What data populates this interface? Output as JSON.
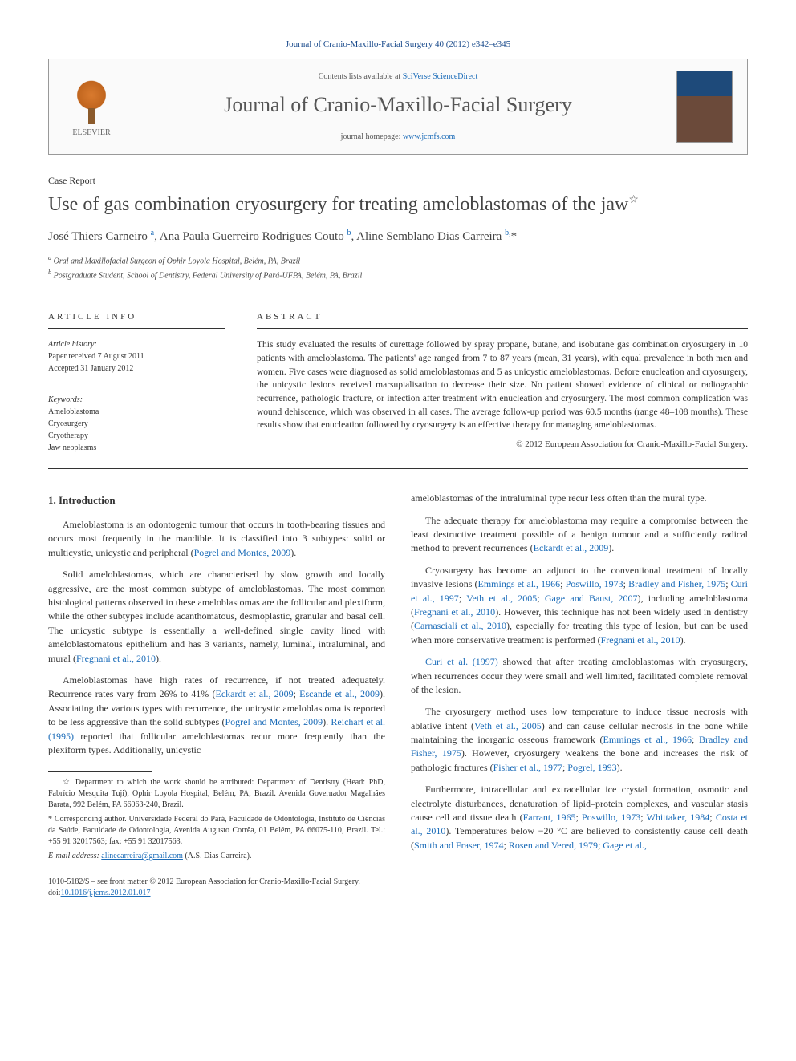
{
  "journal_ref": "Journal of Cranio-Maxillo-Facial Surgery 40 (2012) e342–e345",
  "header": {
    "contents_text": "Contents lists available at ",
    "contents_link": "SciVerse ScienceDirect",
    "journal_name": "Journal of Cranio-Maxillo-Facial Surgery",
    "homepage_label": "journal homepage: ",
    "homepage_url": "www.jcmfs.com",
    "elsevier_label": "ELSEVIER"
  },
  "article_type": "Case Report",
  "title": "Use of gas combination cryosurgery for treating ameloblastomas of the jaw",
  "title_star": "☆",
  "authors_html": "José Thiers Carneiro <sup>a</sup>, Ana Paula Guerreiro Rodrigues Couto <sup>b</sup>, Aline Semblano Dias Carreira <sup>b,</sup><span class='star'>*</span>",
  "affiliations": [
    "a Oral and Maxillofacial Surgeon of Ophir Loyola Hospital, Belém, PA, Brazil",
    "b Postgraduate Student, School of Dentistry, Federal University of Pará-UFPA, Belém, PA, Brazil"
  ],
  "article_info_label": "ARTICLE INFO",
  "abstract_label": "ABSTRACT",
  "history": {
    "label": "Article history:",
    "received": "Paper received 7 August 2011",
    "accepted": "Accepted 31 January 2012"
  },
  "keywords": {
    "label": "Keywords:",
    "items": [
      "Ameloblastoma",
      "Cryosurgery",
      "Cryotherapy",
      "Jaw neoplasms"
    ]
  },
  "abstract": "This study evaluated the results of curettage followed by spray propane, butane, and isobutane gas combination cryosurgery in 10 patients with ameloblastoma. The patients' age ranged from 7 to 87 years (mean, 31 years), with equal prevalence in both men and women. Five cases were diagnosed as solid ameloblastomas and 5 as unicystic ameloblastomas. Before enucleation and cryosurgery, the unicystic lesions received marsupialisation to decrease their size. No patient showed evidence of clinical or radiographic recurrence, pathologic fracture, or infection after treatment with enucleation and cryosurgery. The most common complication was wound dehiscence, which was observed in all cases. The average follow-up period was 60.5 months (range 48–108 months). These results show that enucleation followed by cryosurgery is an effective therapy for managing ameloblastomas.",
  "copyright": "© 2012 European Association for Cranio-Maxillo-Facial Surgery.",
  "section_heading": "1. Introduction",
  "body_paragraphs": [
    "Ameloblastoma is an odontogenic tumour that occurs in tooth-bearing tissues and occurs most frequently in the mandible. It is classified into 3 subtypes: solid or multicystic, unicystic and peripheral (<span class='cite'>Pogrel and Montes, 2009</span>).",
    "Solid ameloblastomas, which are characterised by slow growth and locally aggressive, are the most common subtype of ameloblastomas. The most common histological patterns observed in these ameloblastomas are the follicular and plexiform, while the other subtypes include acanthomatous, desmoplastic, granular and basal cell. The unicystic subtype is essentially a well-defined single cavity lined with ameloblastomatous epithelium and has 3 variants, namely, luminal, intraluminal, and mural (<span class='cite'>Fregnani et al., 2010</span>).",
    "Ameloblastomas have high rates of recurrence, if not treated adequately. Recurrence rates vary from 26% to 41% (<span class='cite'>Eckardt et al., 2009</span>; <span class='cite'>Escande et al., 2009</span>). Associating the various types with recurrence, the unicystic ameloblastoma is reported to be less aggressive than the solid subtypes (<span class='cite'>Pogrel and Montes, 2009</span>). <span class='cite'>Reichart et al. (1995)</span> reported that follicular ameloblastomas recur more frequently than the plexiform types. Additionally, unicystic",
    "ameloblastomas of the intraluminal type recur less often than the mural type.",
    "The adequate therapy for ameloblastoma may require a compromise between the least destructive treatment possible of a benign tumour and a sufficiently radical method to prevent recurrences (<span class='cite'>Eckardt et al., 2009</span>).",
    "Cryosurgery has become an adjunct to the conventional treatment of locally invasive lesions (<span class='cite'>Emmings et al., 1966</span>; <span class='cite'>Poswillo, 1973</span>; <span class='cite'>Bradley and Fisher, 1975</span>; <span class='cite'>Curi et al., 1997</span>; <span class='cite'>Veth et al., 2005</span>; <span class='cite'>Gage and Baust, 2007</span>), including ameloblastoma (<span class='cite'>Fregnani et al., 2010</span>). However, this technique has not been widely used in dentistry (<span class='cite'>Carnasciali et al., 2010</span>), especially for treating this type of lesion, but can be used when more conservative treatment is performed (<span class='cite'>Fregnani et al., 2010</span>).",
    "<span class='cite'>Curi et al. (1997)</span> showed that after treating ameloblastomas with cryosurgery, when recurrences occur they were small and well limited, facilitated complete removal of the lesion.",
    "The cryosurgery method uses low temperature to induce tissue necrosis with ablative intent (<span class='cite'>Veth et al., 2005</span>) and can cause cellular necrosis in the bone while maintaining the inorganic osseous framework (<span class='cite'>Emmings et al., 1966</span>; <span class='cite'>Bradley and Fisher, 1975</span>). However, cryosurgery weakens the bone and increases the risk of pathologic fractures (<span class='cite'>Fisher et al., 1977</span>; <span class='cite'>Pogrel, 1993</span>).",
    "Furthermore, intracellular and extracellular ice crystal formation, osmotic and electrolyte disturbances, denaturation of lipid–protein complexes, and vascular stasis cause cell and tissue death (<span class='cite'>Farrant, 1965</span>; <span class='cite'>Poswillo, 1973</span>; <span class='cite'>Whittaker, 1984</span>; <span class='cite'>Costa et al., 2010</span>). Temperatures below −20 °C are believed to consistently cause cell death (<span class='cite'>Smith and Fraser, 1974</span>; <span class='cite'>Rosen and Vered, 1979</span>; <span class='cite'>Gage et al.,</span>"
  ],
  "footnotes": {
    "dept": "☆ Department to which the work should be attributed: Department of Dentistry (Head: PhD, Fabrício Mesquita Tuji), Ophir Loyola Hospital, Belém, PA, Brazil. Avenida Governador Magalhães Barata, 992 Belém, PA 66063-240, Brazil.",
    "corr": "* Corresponding author. Universidade Federal do Pará, Faculdade de Odontologia, Instituto de Ciências da Saúde, Faculdade de Odontologia, Avenida Augusto Corrêa, 01 Belém, PA 66075-110, Brazil. Tel.: +55 91 32017563; fax: +55 91 32017563.",
    "email_label": "E-mail address: ",
    "email": "alinecarreira@gmail.com",
    "email_suffix": " (A.S. Dias Carreira)."
  },
  "bottom": {
    "front_matter": "1010-5182/$ – see front matter © 2012 European Association for Cranio-Maxillo-Facial Surgery.",
    "doi_label": "doi:",
    "doi": "10.1016/j.jcms.2012.01.017"
  },
  "colors": {
    "link": "#1a6bb8",
    "text": "#333333",
    "border": "#333333"
  }
}
